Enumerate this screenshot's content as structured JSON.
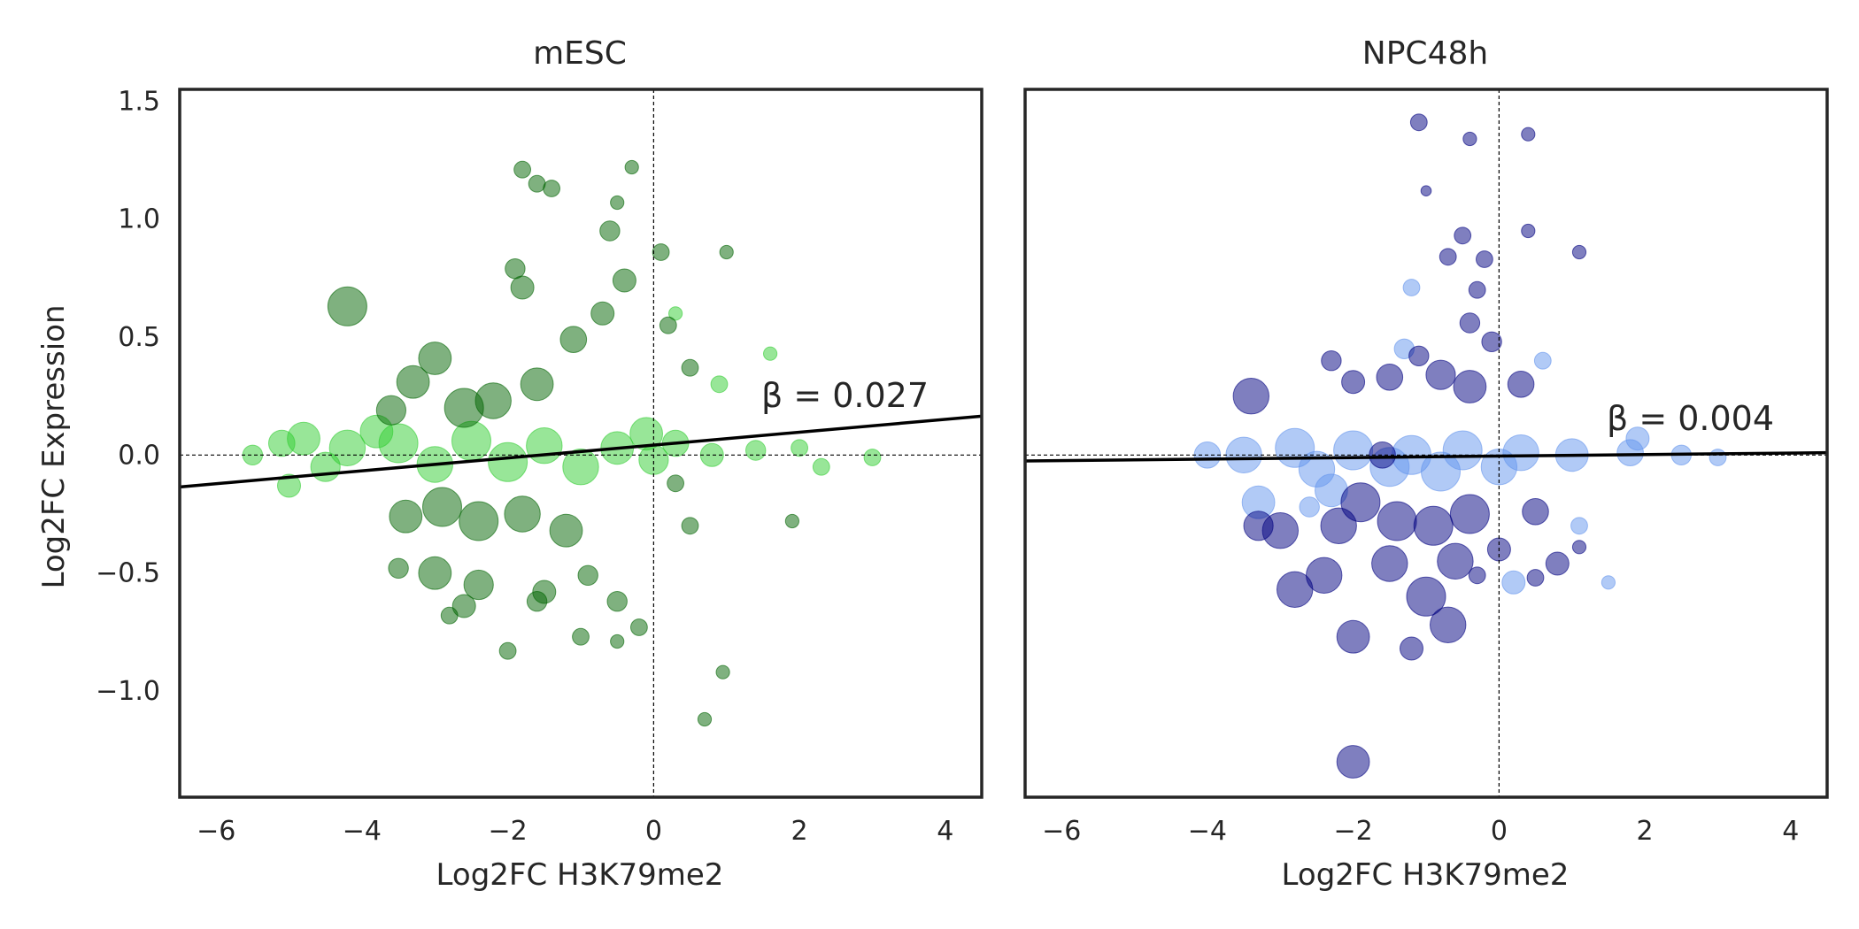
{
  "chart_data": [
    {
      "type": "scatter",
      "title": "mESC",
      "xlabel": "Log2FC H3K79me2",
      "ylabel": "Log2FC Expression",
      "xlim": [
        -6.5,
        4.5
      ],
      "ylim": [
        -1.45,
        1.55
      ],
      "xticks": [
        -6,
        -4,
        -2,
        0,
        2,
        4
      ],
      "xtick_labels": [
        "−6",
        "−4",
        "−2",
        "0",
        "2",
        "4"
      ],
      "yticks": [
        -1.0,
        -0.5,
        0.0,
        0.5,
        1.0,
        1.5
      ],
      "ytick_labels": [
        "−1.0",
        "−0.5",
        "0.0",
        "0.5",
        "1.0",
        "1.5"
      ],
      "grid": false,
      "reference_lines": {
        "x": 0,
        "y": 0
      },
      "annotation": "β = 0.027",
      "fit_line": {
        "x": [
          -6.5,
          4.5
        ],
        "y": [
          -0.135,
          0.165
        ]
      },
      "colors": {
        "background_points": "#32CD32",
        "significant_points": "#006400"
      },
      "series": [
        {
          "color": "#006400",
          "points": [
            [
              -4.2,
              0.63,
              1.0
            ],
            [
              -3.0,
              0.41,
              0.8
            ],
            [
              -1.8,
              1.21,
              0.3
            ],
            [
              -1.6,
              1.15,
              0.3
            ],
            [
              -1.4,
              1.13,
              0.3
            ],
            [
              -0.3,
              1.22,
              0.2
            ],
            [
              -0.5,
              1.07,
              0.2
            ],
            [
              -0.6,
              0.95,
              0.4
            ],
            [
              -1.9,
              0.79,
              0.4
            ],
            [
              -1.8,
              0.71,
              0.5
            ],
            [
              -2.6,
              0.2,
              1.0
            ],
            [
              -2.2,
              0.23,
              0.9
            ],
            [
              -1.6,
              0.3,
              0.8
            ],
            [
              -3.3,
              0.31,
              0.8
            ],
            [
              -3.6,
              0.19,
              0.7
            ],
            [
              -1.1,
              0.49,
              0.6
            ],
            [
              -0.7,
              0.6,
              0.5
            ],
            [
              -0.4,
              0.74,
              0.5
            ],
            [
              0.1,
              0.86,
              0.3
            ],
            [
              0.2,
              0.55,
              0.3
            ],
            [
              -2.9,
              -0.22,
              1.0
            ],
            [
              -2.4,
              -0.28,
              1.0
            ],
            [
              -1.8,
              -0.25,
              0.9
            ],
            [
              -1.2,
              -0.32,
              0.8
            ],
            [
              -3.4,
              -0.26,
              0.8
            ],
            [
              -3.0,
              -0.5,
              0.8
            ],
            [
              -2.4,
              -0.55,
              0.7
            ],
            [
              -2.6,
              -0.64,
              0.5
            ],
            [
              -1.5,
              -0.58,
              0.5
            ],
            [
              -0.9,
              -0.51,
              0.4
            ],
            [
              -0.5,
              -0.62,
              0.4
            ],
            [
              -0.2,
              -0.73,
              0.3
            ],
            [
              -1.6,
              -0.62,
              0.4
            ],
            [
              -3.5,
              -0.48,
              0.4
            ],
            [
              -2.8,
              -0.68,
              0.3
            ],
            [
              -2.0,
              -0.83,
              0.3
            ],
            [
              -1.0,
              -0.77,
              0.3
            ],
            [
              -0.5,
              -0.79,
              0.2
            ],
            [
              0.7,
              -1.12,
              0.2
            ],
            [
              0.95,
              -0.92,
              0.2
            ],
            [
              1.0,
              0.86,
              0.2
            ],
            [
              0.5,
              0.37,
              0.3
            ],
            [
              0.5,
              -0.3,
              0.3
            ],
            [
              0.3,
              -0.12,
              0.3
            ],
            [
              1.9,
              -0.28,
              0.2
            ]
          ]
        },
        {
          "color": "#32CD32",
          "points": [
            [
              -4.8,
              0.07,
              0.8
            ],
            [
              -4.2,
              0.03,
              0.9
            ],
            [
              -3.5,
              0.05,
              1.0
            ],
            [
              -2.5,
              0.06,
              1.0
            ],
            [
              -1.5,
              0.04,
              0.9
            ],
            [
              -0.5,
              0.03,
              0.8
            ],
            [
              0.3,
              0.05,
              0.6
            ],
            [
              -4.5,
              -0.05,
              0.7
            ],
            [
              -3.0,
              -0.04,
              0.9
            ],
            [
              -2.0,
              -0.03,
              1.0
            ],
            [
              -1.0,
              -0.05,
              0.9
            ],
            [
              0.0,
              -0.02,
              0.7
            ],
            [
              0.8,
              0.0,
              0.5
            ],
            [
              1.4,
              0.02,
              0.4
            ],
            [
              -5.1,
              0.05,
              0.6
            ],
            [
              -5.0,
              -0.13,
              0.5
            ],
            [
              -5.5,
              0.0,
              0.4
            ],
            [
              2.3,
              -0.05,
              0.3
            ],
            [
              2.0,
              0.03,
              0.3
            ],
            [
              3.0,
              -0.01,
              0.3
            ],
            [
              1.6,
              0.43,
              0.2
            ],
            [
              0.9,
              0.3,
              0.3
            ],
            [
              0.3,
              0.6,
              0.2
            ],
            [
              -0.1,
              0.09,
              0.8
            ],
            [
              -3.8,
              0.1,
              0.8
            ]
          ]
        }
      ]
    },
    {
      "type": "scatter",
      "title": "NPC48h",
      "xlabel": "Log2FC H3K79me2",
      "ylabel": "",
      "xlim": [
        -6.5,
        4.5
      ],
      "ylim": [
        -1.45,
        1.55
      ],
      "xticks": [
        -6,
        -4,
        -2,
        0,
        2,
        4
      ],
      "xtick_labels": [
        "−6",
        "−4",
        "−2",
        "0",
        "2",
        "4"
      ],
      "grid": false,
      "reference_lines": {
        "x": 0,
        "y": 0
      },
      "annotation": "β = 0.004",
      "fit_line": {
        "x": [
          -6.5,
          4.5
        ],
        "y": [
          -0.025,
          0.01
        ]
      },
      "colors": {
        "background_points": "#6495ED",
        "significant_points": "#000080"
      },
      "series": [
        {
          "color": "#000080",
          "points": [
            [
              -1.1,
              1.41,
              0.3
            ],
            [
              -0.4,
              1.34,
              0.2
            ],
            [
              0.4,
              1.36,
              0.2
            ],
            [
              -1.0,
              1.12,
              0.1
            ],
            [
              -0.5,
              0.93,
              0.3
            ],
            [
              0.4,
              0.95,
              0.2
            ],
            [
              -0.7,
              0.84,
              0.3
            ],
            [
              -0.2,
              0.83,
              0.3
            ],
            [
              1.1,
              0.86,
              0.2
            ],
            [
              -0.3,
              0.7,
              0.3
            ],
            [
              -0.4,
              0.56,
              0.4
            ],
            [
              -0.1,
              0.48,
              0.4
            ],
            [
              -2.0,
              0.31,
              0.5
            ],
            [
              -1.5,
              0.33,
              0.6
            ],
            [
              -0.8,
              0.34,
              0.7
            ],
            [
              -0.4,
              0.29,
              0.8
            ],
            [
              0.3,
              0.3,
              0.6
            ],
            [
              -3.4,
              0.25,
              0.9
            ],
            [
              -2.3,
              0.4,
              0.4
            ],
            [
              -1.1,
              0.42,
              0.4
            ],
            [
              -1.9,
              -0.2,
              1.0
            ],
            [
              -1.4,
              -0.28,
              1.0
            ],
            [
              -0.9,
              -0.3,
              1.0
            ],
            [
              -0.4,
              -0.25,
              1.0
            ],
            [
              -2.2,
              -0.3,
              0.9
            ],
            [
              -3.0,
              -0.32,
              0.9
            ],
            [
              -2.8,
              -0.57,
              0.9
            ],
            [
              -2.4,
              -0.51,
              0.9
            ],
            [
              -1.5,
              -0.46,
              0.9
            ],
            [
              -0.6,
              -0.45,
              0.9
            ],
            [
              -1.0,
              -0.6,
              1.0
            ],
            [
              -0.7,
              -0.72,
              0.9
            ],
            [
              -2.0,
              -0.77,
              0.8
            ],
            [
              -1.2,
              -0.82,
              0.5
            ],
            [
              -2.0,
              -1.3,
              0.8
            ],
            [
              0.5,
              -0.24,
              0.6
            ],
            [
              0.8,
              -0.46,
              0.5
            ],
            [
              1.1,
              -0.39,
              0.2
            ],
            [
              0.5,
              -0.52,
              0.3
            ],
            [
              -0.3,
              -0.51,
              0.3
            ],
            [
              -3.3,
              -0.3,
              0.7
            ],
            [
              0.0,
              -0.4,
              0.5
            ],
            [
              -1.6,
              0.0,
              0.6
            ]
          ]
        },
        {
          "color": "#6495ED",
          "points": [
            [
              -3.5,
              0.0,
              0.9
            ],
            [
              -2.8,
              0.03,
              1.0
            ],
            [
              -2.0,
              0.02,
              1.0
            ],
            [
              -1.2,
              0.0,
              1.0
            ],
            [
              -0.5,
              0.02,
              1.0
            ],
            [
              0.3,
              0.01,
              0.9
            ],
            [
              1.0,
              0.0,
              0.8
            ],
            [
              1.8,
              0.01,
              0.6
            ],
            [
              -2.5,
              -0.06,
              0.9
            ],
            [
              -1.5,
              -0.05,
              1.0
            ],
            [
              -0.8,
              -0.07,
              1.0
            ],
            [
              0.0,
              -0.05,
              0.9
            ],
            [
              -4.0,
              0.0,
              0.6
            ],
            [
              2.5,
              0.0,
              0.4
            ],
            [
              3.0,
              -0.01,
              0.3
            ],
            [
              -3.3,
              -0.2,
              0.8
            ],
            [
              -2.3,
              -0.15,
              0.8
            ],
            [
              1.9,
              0.07,
              0.5
            ],
            [
              1.1,
              -0.3,
              0.3
            ],
            [
              -1.3,
              0.45,
              0.4
            ],
            [
              -1.2,
              0.71,
              0.3
            ],
            [
              1.5,
              -0.54,
              0.2
            ],
            [
              0.2,
              -0.54,
              0.5
            ],
            [
              -2.6,
              -0.22,
              0.4
            ],
            [
              0.6,
              0.4,
              0.3
            ]
          ]
        }
      ]
    }
  ]
}
